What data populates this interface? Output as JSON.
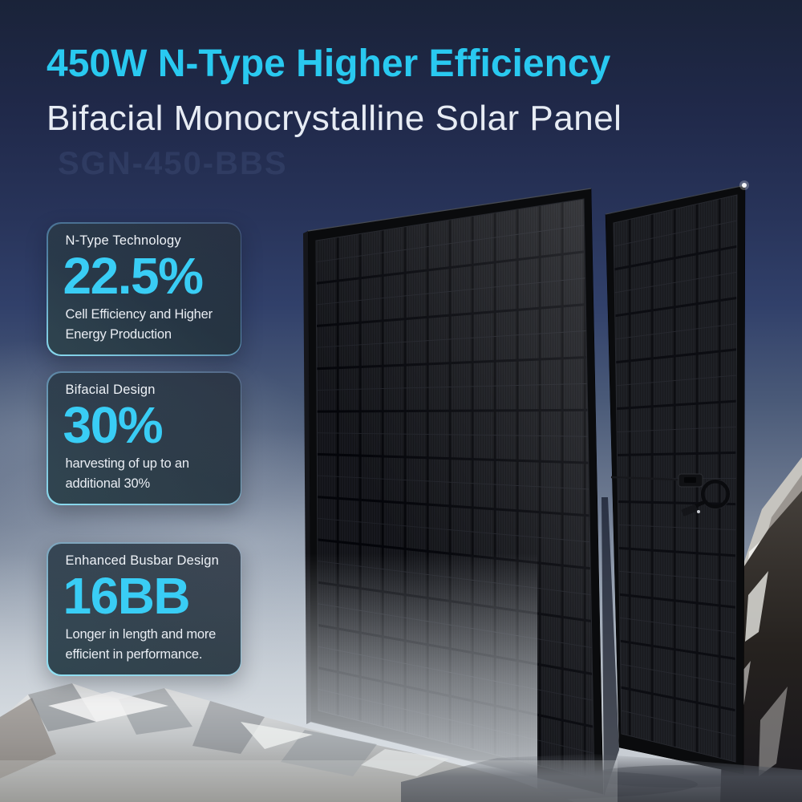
{
  "header": {
    "title": "450W N-Type Higher Efficiency",
    "subtitle": "Bifacial Monocrystalline Solar Panel",
    "watermark": "SGN-450-BBS"
  },
  "cards": [
    {
      "label": "N-Type Technology",
      "value": "22.5%",
      "description": "Cell Efficiency and Higher Energy Production"
    },
    {
      "label": "Bifacial Design",
      "value": "30%",
      "description": "harvesting of up to an additional 30%"
    },
    {
      "label": "Enhanced Busbar Design",
      "value": "16BB",
      "description": "Longer in length and more efficient in performance."
    }
  ],
  "colors": {
    "accent_cyan": "#39CDF5",
    "title_text": "#29C9F0",
    "subtitle_text": "#E7ECF4",
    "card_border_glow": "#8CE2F6",
    "card_background": "#1A1F29",
    "sky_top": "#1A2339",
    "fog_bottom": "#CACED4",
    "panel_black": "#0B0C0E"
  },
  "scene": {
    "front_panel": "solar panel front (all-black cells)",
    "rear_panel": "solar panel back with junction box and coiled cable",
    "terrain": "snowy rocky mountain ridge with fog"
  }
}
